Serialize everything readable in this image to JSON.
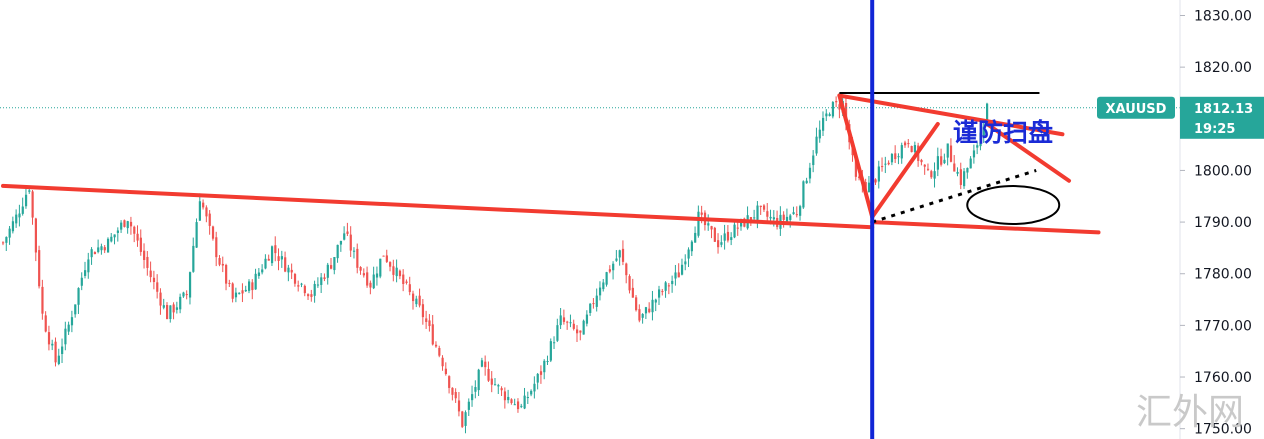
{
  "chart_data": {
    "type": "candlestick",
    "symbol": "XAUUSD",
    "last_price": "1812.13",
    "countdown": "19:25",
    "annotation": "谨防扫盘",
    "watermark": "汇外网",
    "y_ticks": [
      "1750.00",
      "1760.00",
      "1770.00",
      "1780.00",
      "1790.00",
      "1800.00",
      "1810.00",
      "1820.00",
      "1830.00"
    ],
    "y_tick_values": [
      1750,
      1760,
      1770,
      1780,
      1790,
      1800,
      1810,
      1820,
      1830
    ],
    "ylim": [
      1748,
      1833
    ],
    "colors": {
      "up": "#26a69a",
      "down": "#ef5350",
      "trendline": "#f23b30",
      "vline": "#1125d6",
      "price_tag": "#26a69a",
      "resistance": "#000000"
    },
    "ohlc_waypoints": [
      [
        0,
        1786
      ],
      [
        4,
        1791
      ],
      [
        8,
        1797
      ],
      [
        12,
        1772
      ],
      [
        16,
        1763
      ],
      [
        20,
        1770
      ],
      [
        26,
        1784
      ],
      [
        32,
        1786
      ],
      [
        38,
        1791
      ],
      [
        44,
        1781
      ],
      [
        50,
        1772
      ],
      [
        56,
        1776
      ],
      [
        60,
        1795
      ],
      [
        64,
        1786
      ],
      [
        70,
        1775
      ],
      [
        76,
        1778
      ],
      [
        82,
        1785
      ],
      [
        88,
        1780
      ],
      [
        94,
        1776
      ],
      [
        100,
        1782
      ],
      [
        104,
        1788
      ],
      [
        108,
        1782
      ],
      [
        112,
        1778
      ],
      [
        116,
        1784
      ],
      [
        122,
        1778
      ],
      [
        128,
        1772
      ],
      [
        134,
        1763
      ],
      [
        140,
        1751
      ],
      [
        146,
        1762
      ],
      [
        152,
        1757
      ],
      [
        158,
        1754
      ],
      [
        164,
        1761
      ],
      [
        170,
        1771
      ],
      [
        176,
        1768
      ],
      [
        182,
        1778
      ],
      [
        188,
        1784
      ],
      [
        194,
        1771
      ],
      [
        200,
        1776
      ],
      [
        206,
        1780
      ],
      [
        212,
        1791
      ],
      [
        218,
        1786
      ],
      [
        224,
        1789
      ],
      [
        230,
        1792
      ],
      [
        236,
        1790
      ],
      [
        242,
        1792
      ],
      [
        248,
        1806
      ],
      [
        252,
        1812
      ],
      [
        256,
        1813
      ],
      [
        260,
        1798
      ],
      [
        264,
        1797
      ],
      [
        270,
        1802
      ],
      [
        276,
        1806
      ],
      [
        282,
        1799
      ],
      [
        288,
        1804
      ],
      [
        292,
        1798
      ],
      [
        296,
        1803
      ],
      [
        300,
        1812
      ]
    ],
    "trendlines": [
      {
        "from": [
          0,
          1797
        ],
        "to": [
          265,
          1789
        ]
      },
      {
        "from": [
          265,
          1790
        ],
        "to": [
          334,
          1788
        ]
      },
      {
        "from": [
          255,
          1814.5
        ],
        "to": [
          323,
          1807
        ]
      },
      {
        "from": [
          300,
          1809
        ],
        "to": [
          325,
          1798
        ]
      },
      {
        "from": [
          255,
          1814.5
        ],
        "to": [
          265,
          1791
        ]
      },
      {
        "from": [
          265,
          1791
        ],
        "to": [
          285,
          1809
        ]
      }
    ],
    "dotted_trendline": {
      "from": [
        265,
        1790
      ],
      "to": [
        315,
        1800
      ]
    },
    "resistance": {
      "from": [
        255,
        1815
      ],
      "to": [
        316,
        1815
      ]
    },
    "vertical_line_x": 265,
    "ellipse_center": [
      308,
      1793.3
    ]
  }
}
